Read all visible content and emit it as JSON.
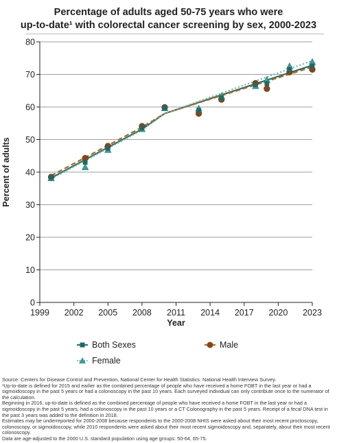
{
  "title_line1": "Percentage of adults aged 50-75 years who were",
  "title_line2": "up-to-date¹ with colorectal cancer screening by sex, 2000-2023",
  "chart_data": {
    "type": "line",
    "xlabel": "Year",
    "ylabel": "Percent of adults",
    "xlim": [
      1999,
      2023
    ],
    "ylim": [
      0,
      80
    ],
    "x_ticks": [
      1999,
      2002,
      2005,
      2008,
      2011,
      2014,
      2017,
      2020,
      2023
    ],
    "y_ticks": [
      0,
      10,
      20,
      30,
      40,
      50,
      60,
      70,
      80
    ],
    "grid": "horizontal",
    "legend_position": "bottom",
    "series": [
      {
        "name": "Both Sexes",
        "marker": "square",
        "color": "#1f6f6a",
        "points": [
          [
            2000,
            38.3
          ],
          [
            2003,
            43.0
          ],
          [
            2005,
            47.3
          ],
          [
            2008,
            53.5
          ],
          [
            2010,
            59.7
          ],
          [
            2013,
            59.0
          ],
          [
            2015,
            62.8
          ],
          [
            2018,
            66.8
          ],
          [
            2019,
            67.2
          ],
          [
            2021,
            71.5
          ],
          [
            2023,
            72.6
          ]
        ],
        "trend": [
          [
            2000,
            38.2
          ],
          [
            2008,
            53.2
          ],
          [
            2010,
            58.0
          ],
          [
            2023,
            72.8
          ]
        ]
      },
      {
        "name": "Male",
        "marker": "circle",
        "color": "#8b4513",
        "points": [
          [
            2000,
            38.5
          ],
          [
            2003,
            44.3
          ],
          [
            2005,
            48.0
          ],
          [
            2008,
            54.1
          ],
          [
            2010,
            59.9
          ],
          [
            2013,
            58.0
          ],
          [
            2015,
            62.3
          ],
          [
            2018,
            67.3
          ],
          [
            2019,
            65.6
          ],
          [
            2021,
            70.7
          ],
          [
            2023,
            71.5
          ]
        ],
        "trend": [
          [
            2000,
            38.9
          ],
          [
            2008,
            53.8
          ],
          [
            2010,
            58.0
          ],
          [
            2023,
            72.3
          ]
        ]
      },
      {
        "name": "Female",
        "marker": "triangle",
        "color": "#2f8f8a",
        "points": [
          [
            2000,
            38.1
          ],
          [
            2003,
            41.5
          ],
          [
            2005,
            46.8
          ],
          [
            2008,
            53.2
          ],
          [
            2010,
            59.6
          ],
          [
            2013,
            59.5
          ],
          [
            2015,
            63.3
          ],
          [
            2018,
            66.4
          ],
          [
            2019,
            68.3
          ],
          [
            2021,
            72.5
          ],
          [
            2023,
            73.8
          ]
        ],
        "trend": [
          [
            2000,
            37.9
          ],
          [
            2008,
            52.9
          ],
          [
            2010,
            58.0
          ],
          [
            2023,
            74.2
          ]
        ]
      }
    ]
  },
  "colors": {
    "both_line": "#1f6f6a",
    "both_marker": "#1e6a66",
    "male_line": "#b5651d",
    "male_marker": "#8b4513",
    "female_line": "#6fb3ad",
    "female_marker": "#3c9c96",
    "grid": "#9e9e9e",
    "axis": "#222222"
  },
  "legend": {
    "both_label": "Both Sexes",
    "male_label": "Male",
    "female_label": "Female"
  },
  "notes": [
    "Source: Centers for Disease Control and Prevention, National Center for Health Statistics. National Health Interview Survey.",
    "¹Up-to-date is defined for 2015 and earlier as the combined percentage of people who have received a home FOBT in the last year or had a sigmoidoscopy in the past 5 years or had a colonoscopy in the past 10 years. Each surveyed individual can only contribute once to the numerator of the calculation.",
    "Beginning in 2016, up-to-date is defined as the combined percentage of people who have received a home FOBT in the last year or had a sigmoidoscopy in the past 5 years, had a colonoscopy in the past 10 years or a CT Colonography in the past 5 years. Receipt of a fecal DNA test in the past 3 years was added to the definition in 2018.",
    "Estimates may be underreported for 2000-2008 because respondents to the 2000-2008 NHIS were asked about their most recent proctoscopy, colonoscopy, or sigmoidoscopy, while 2010 respondents were asked about their most recent sigmoidoscopy and, separately, about their most recent colonoscopy.",
    "Data are age-adjusted to the 2000 U.S. standard population using age groups: 50-64, 65-75."
  ]
}
